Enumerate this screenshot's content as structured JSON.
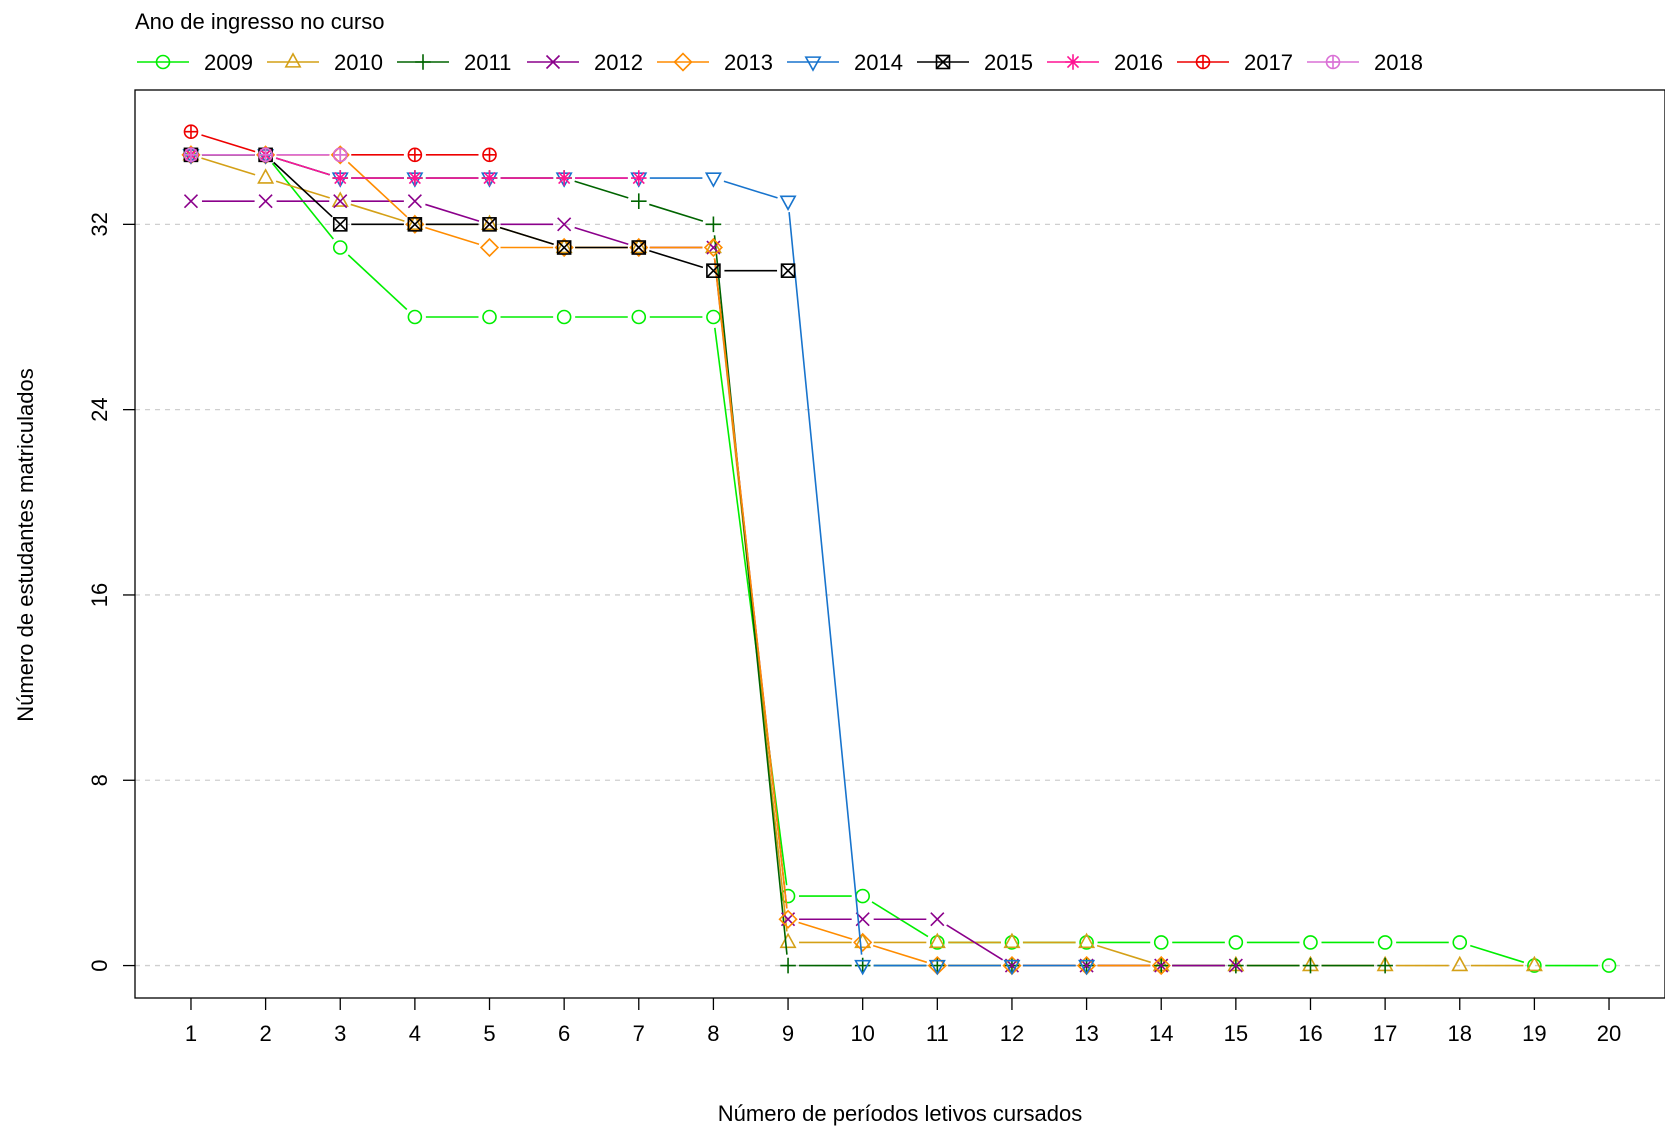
{
  "chart_data": {
    "type": "line",
    "title": "",
    "legend_title": "Ano de ingresso no curso",
    "legend_position": "top",
    "xlabel": "Número de períodos letivos cursados",
    "ylabel": "Número de estudantes matriculados",
    "x": [
      1,
      2,
      3,
      4,
      5,
      6,
      7,
      8,
      9,
      10,
      11,
      12,
      13,
      14,
      15,
      16,
      17,
      18,
      19,
      20
    ],
    "xlim": [
      0.25,
      20.75
    ],
    "ylim": [
      -1.4,
      37.8
    ],
    "yticks": [
      0,
      8,
      16,
      24,
      32
    ],
    "grid": "horizontal-dashed",
    "series": [
      {
        "name": "2009",
        "color": "#00ee00",
        "marker": "circle",
        "values": [
          35,
          35,
          31,
          28,
          28,
          28,
          28,
          28,
          3,
          3,
          1,
          1,
          1,
          1,
          1,
          1,
          1,
          1,
          0,
          0
        ]
      },
      {
        "name": "2010",
        "color": "#d4a017",
        "marker": "triangle-up",
        "values": [
          35,
          34,
          33,
          32,
          32,
          31,
          31,
          31,
          1,
          1,
          1,
          1,
          1,
          0,
          0,
          0,
          0,
          0,
          0,
          null
        ]
      },
      {
        "name": "2011",
        "color": "#006400",
        "marker": "plus",
        "values": [
          35,
          35,
          34,
          34,
          34,
          34,
          33,
          32,
          0,
          0,
          0,
          0,
          0,
          0,
          0,
          0,
          0,
          null,
          null,
          null
        ]
      },
      {
        "name": "2012",
        "color": "#8b008b",
        "marker": "cross",
        "values": [
          33,
          33,
          33,
          33,
          32,
          32,
          31,
          31,
          2,
          2,
          2,
          0,
          0,
          0,
          0,
          null,
          null,
          null,
          null,
          null
        ]
      },
      {
        "name": "2013",
        "color": "#ff8c00",
        "marker": "diamond",
        "values": [
          35,
          35,
          35,
          32,
          31,
          31,
          31,
          31,
          2,
          1,
          0,
          0,
          0,
          0,
          null,
          null,
          null,
          null,
          null,
          null
        ]
      },
      {
        "name": "2014",
        "color": "#1874cd",
        "marker": "triangle-down",
        "values": [
          35,
          35,
          34,
          34,
          34,
          34,
          34,
          34,
          33,
          0,
          0,
          0,
          0,
          null,
          null,
          null,
          null,
          null,
          null,
          null
        ]
      },
      {
        "name": "2015",
        "color": "#000000",
        "marker": "square-x",
        "values": [
          35,
          35,
          32,
          32,
          32,
          31,
          31,
          30,
          30,
          null,
          null,
          null,
          null,
          null,
          null,
          null,
          null,
          null,
          null,
          null
        ]
      },
      {
        "name": "2016",
        "color": "#ff1493",
        "marker": "asterisk",
        "values": [
          35,
          35,
          34,
          34,
          34,
          34,
          34,
          null,
          null,
          null,
          null,
          null,
          null,
          null,
          null,
          null,
          null,
          null,
          null,
          null
        ]
      },
      {
        "name": "2017",
        "color": "#ee0000",
        "marker": "circle-plus",
        "values": [
          36,
          35,
          35,
          35,
          35,
          null,
          null,
          null,
          null,
          null,
          null,
          null,
          null,
          null,
          null,
          null,
          null,
          null,
          null,
          null
        ]
      },
      {
        "name": "2018",
        "color": "#da70d6",
        "marker": "circle-plus",
        "values": [
          35,
          35,
          35,
          null,
          null,
          null,
          null,
          null,
          null,
          null,
          null,
          null,
          null,
          null,
          null,
          null,
          null,
          null,
          null,
          null
        ]
      }
    ]
  }
}
